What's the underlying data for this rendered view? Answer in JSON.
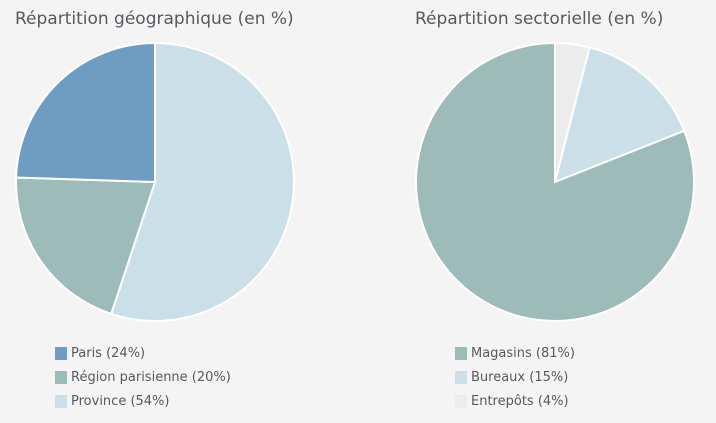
{
  "chart_data": [
    {
      "type": "pie",
      "title": "Répartition géographique (en %)",
      "categories": [
        "Paris",
        "Région parisienne",
        "Province"
      ],
      "values": [
        24,
        20,
        54
      ],
      "legend": [
        "Paris (24%)",
        "Région parisienne (20%)",
        "Province (54%)"
      ],
      "colors": [
        "#6f9cc3",
        "#9dbbb8",
        "#cadfe7"
      ],
      "legend_position": "bottom-left"
    },
    {
      "type": "pie",
      "title": "Répartition sectorielle (en %)",
      "categories": [
        "Magasins",
        "Bureaux",
        "Entrepôts"
      ],
      "values": [
        81,
        15,
        4
      ],
      "legend": [
        "Magasins (81%)",
        "Bureaux (15%)",
        "Entrepôts (4%)"
      ],
      "colors": [
        "#9dbbb8",
        "#cadfe7",
        "#ececec"
      ],
      "legend_position": "bottom-left"
    }
  ]
}
